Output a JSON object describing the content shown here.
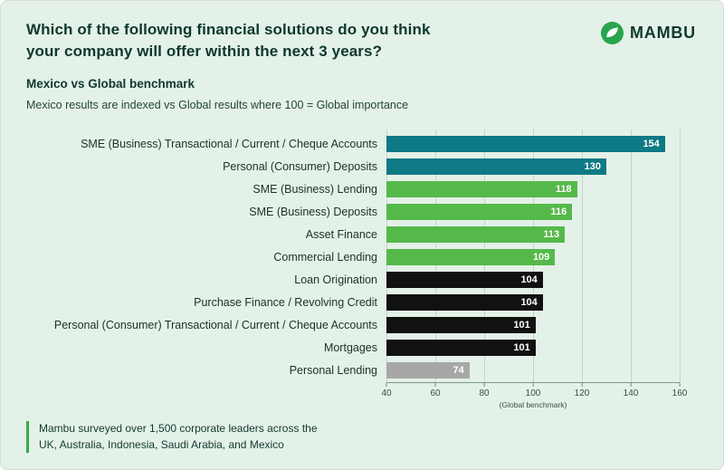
{
  "header": {
    "title": "Which of the following financial solutions do you think your company will offer within the next 3 years?",
    "brand": "MAMBU"
  },
  "intro": {
    "subtitle": "Mexico vs Global benchmark",
    "description": "Mexico results are indexed vs Global results where 100 = Global importance"
  },
  "chart_data": {
    "type": "bar",
    "orientation": "horizontal",
    "title": "Mexico vs Global benchmark",
    "categories": [
      "SME (Business) Transactional / Current / Cheque Accounts",
      "Personal (Consumer) Deposits",
      "SME (Business) Lending",
      "SME (Business) Deposits",
      "Asset Finance",
      "Commercial Lending",
      "Loan Origination",
      "Purchase Finance / Revolving Credit",
      "Personal (Consumer) Transactional / Current / Cheque Accounts",
      "Mortgages",
      "Personal Lending"
    ],
    "values": [
      154,
      130,
      118,
      116,
      113,
      109,
      104,
      104,
      101,
      101,
      74
    ],
    "bar_colors": [
      "#0d7a85",
      "#0d7a85",
      "#55b94a",
      "#55b94a",
      "#55b94a",
      "#55b94a",
      "#111111",
      "#111111",
      "#111111",
      "#111111",
      "#a7a7a7"
    ],
    "xlim": [
      40,
      160
    ],
    "xticks": [
      40,
      60,
      80,
      100,
      120,
      140,
      160
    ],
    "xlabel": "(Global benchmark)",
    "xlabel_anchor": 100,
    "grid": true,
    "legend": false
  },
  "colors": {
    "background": "#e4f1e8",
    "ink": "#0e382d",
    "teal": "#0d7a85",
    "green": "#55b94a",
    "black": "#111111",
    "gray": "#a7a7a7",
    "accent": "#2fac4f"
  },
  "footnote": {
    "text": "Mambu surveyed over 1,500 corporate leaders across the UK, Australia, Indonesia, Saudi Arabia, and Mexico"
  }
}
